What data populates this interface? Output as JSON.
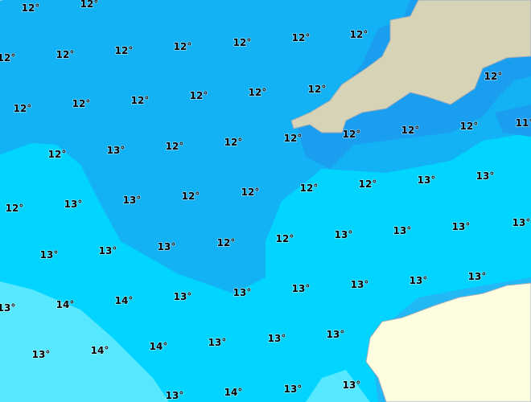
{
  "labels": [
    "12°",
    "12°",
    "12°",
    "12°",
    "12°",
    "12°",
    "12°",
    "12°",
    "12°",
    "12°",
    "12°",
    "12°",
    "12°",
    "12°",
    "12°",
    "12°",
    "11°",
    "12°",
    "13°",
    "12°",
    "12°",
    "12°",
    "12°",
    "12°",
    "12°",
    "12°",
    "13°",
    "13°",
    "12°",
    "12°",
    "12°",
    "12°",
    "13°",
    "13°",
    "13°",
    "13°",
    "13°",
    "12°",
    "12°",
    "13°",
    "13°",
    "13°",
    "13°",
    "13°",
    "14°",
    "14°",
    "13°",
    "13°",
    "13°",
    "13°",
    "13°",
    "13°",
    "13°",
    "14°",
    "14°",
    "13°",
    "13°",
    "13°",
    "13°",
    "14°",
    "13°",
    "13°",
    "13°"
  ]
}
